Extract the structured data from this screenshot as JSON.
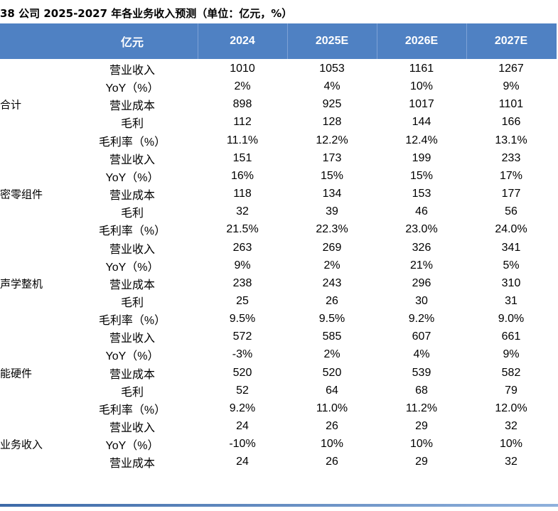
{
  "title": "38 公司 2025-2027 年各业务收入预测（单位：亿元，%）",
  "table": {
    "header": [
      "亿元",
      "2024",
      "2025E",
      "2026E",
      "2027E"
    ],
    "groups": [
      {
        "name": "合计",
        "rows": [
          [
            "营业收入",
            "1010",
            "1053",
            "1161",
            "1267"
          ],
          [
            "YoY（%）",
            "2%",
            "4%",
            "10%",
            "9%"
          ],
          [
            "营业成本",
            "898",
            "925",
            "1017",
            "1101"
          ],
          [
            "毛利",
            "112",
            "128",
            "144",
            "166"
          ],
          [
            "毛利率（%）",
            "11.1%",
            "12.2%",
            "12.4%",
            "13.1%"
          ]
        ]
      },
      {
        "name": "密零组件",
        "rows": [
          [
            "营业收入",
            "151",
            "173",
            "199",
            "233"
          ],
          [
            "YoY（%）",
            "16%",
            "15%",
            "15%",
            "17%"
          ],
          [
            "营业成本",
            "118",
            "134",
            "153",
            "177"
          ],
          [
            "毛利",
            "32",
            "39",
            "46",
            "56"
          ],
          [
            "毛利率（%）",
            "21.5%",
            "22.3%",
            "23.0%",
            "24.0%"
          ]
        ]
      },
      {
        "name": "声学整机",
        "rows": [
          [
            "营业收入",
            "263",
            "269",
            "326",
            "341"
          ],
          [
            "YoY（%）",
            "9%",
            "2%",
            "21%",
            "5%"
          ],
          [
            "营业成本",
            "238",
            "243",
            "296",
            "310"
          ],
          [
            "毛利",
            "25",
            "26",
            "30",
            "31"
          ],
          [
            "毛利率（%）",
            "9.5%",
            "9.5%",
            "9.2%",
            "9.0%"
          ]
        ]
      },
      {
        "name": "能硬件",
        "rows": [
          [
            "营业收入",
            "572",
            "585",
            "607",
            "661"
          ],
          [
            "YoY（%）",
            "-3%",
            "2%",
            "4%",
            "9%"
          ],
          [
            "营业成本",
            "520",
            "520",
            "539",
            "582"
          ],
          [
            "毛利",
            "52",
            "64",
            "68",
            "79"
          ],
          [
            "毛利率（%）",
            "9.2%",
            "11.0%",
            "11.2%",
            "12.0%"
          ]
        ]
      },
      {
        "name": "业务收入",
        "rows": [
          [
            "营业收入",
            "24",
            "26",
            "29",
            "32"
          ],
          [
            "YoY（%）",
            "-10%",
            "10%",
            "10%",
            "10%"
          ],
          [
            "营业成本",
            "24",
            "26",
            "29",
            "32"
          ]
        ]
      }
    ]
  }
}
